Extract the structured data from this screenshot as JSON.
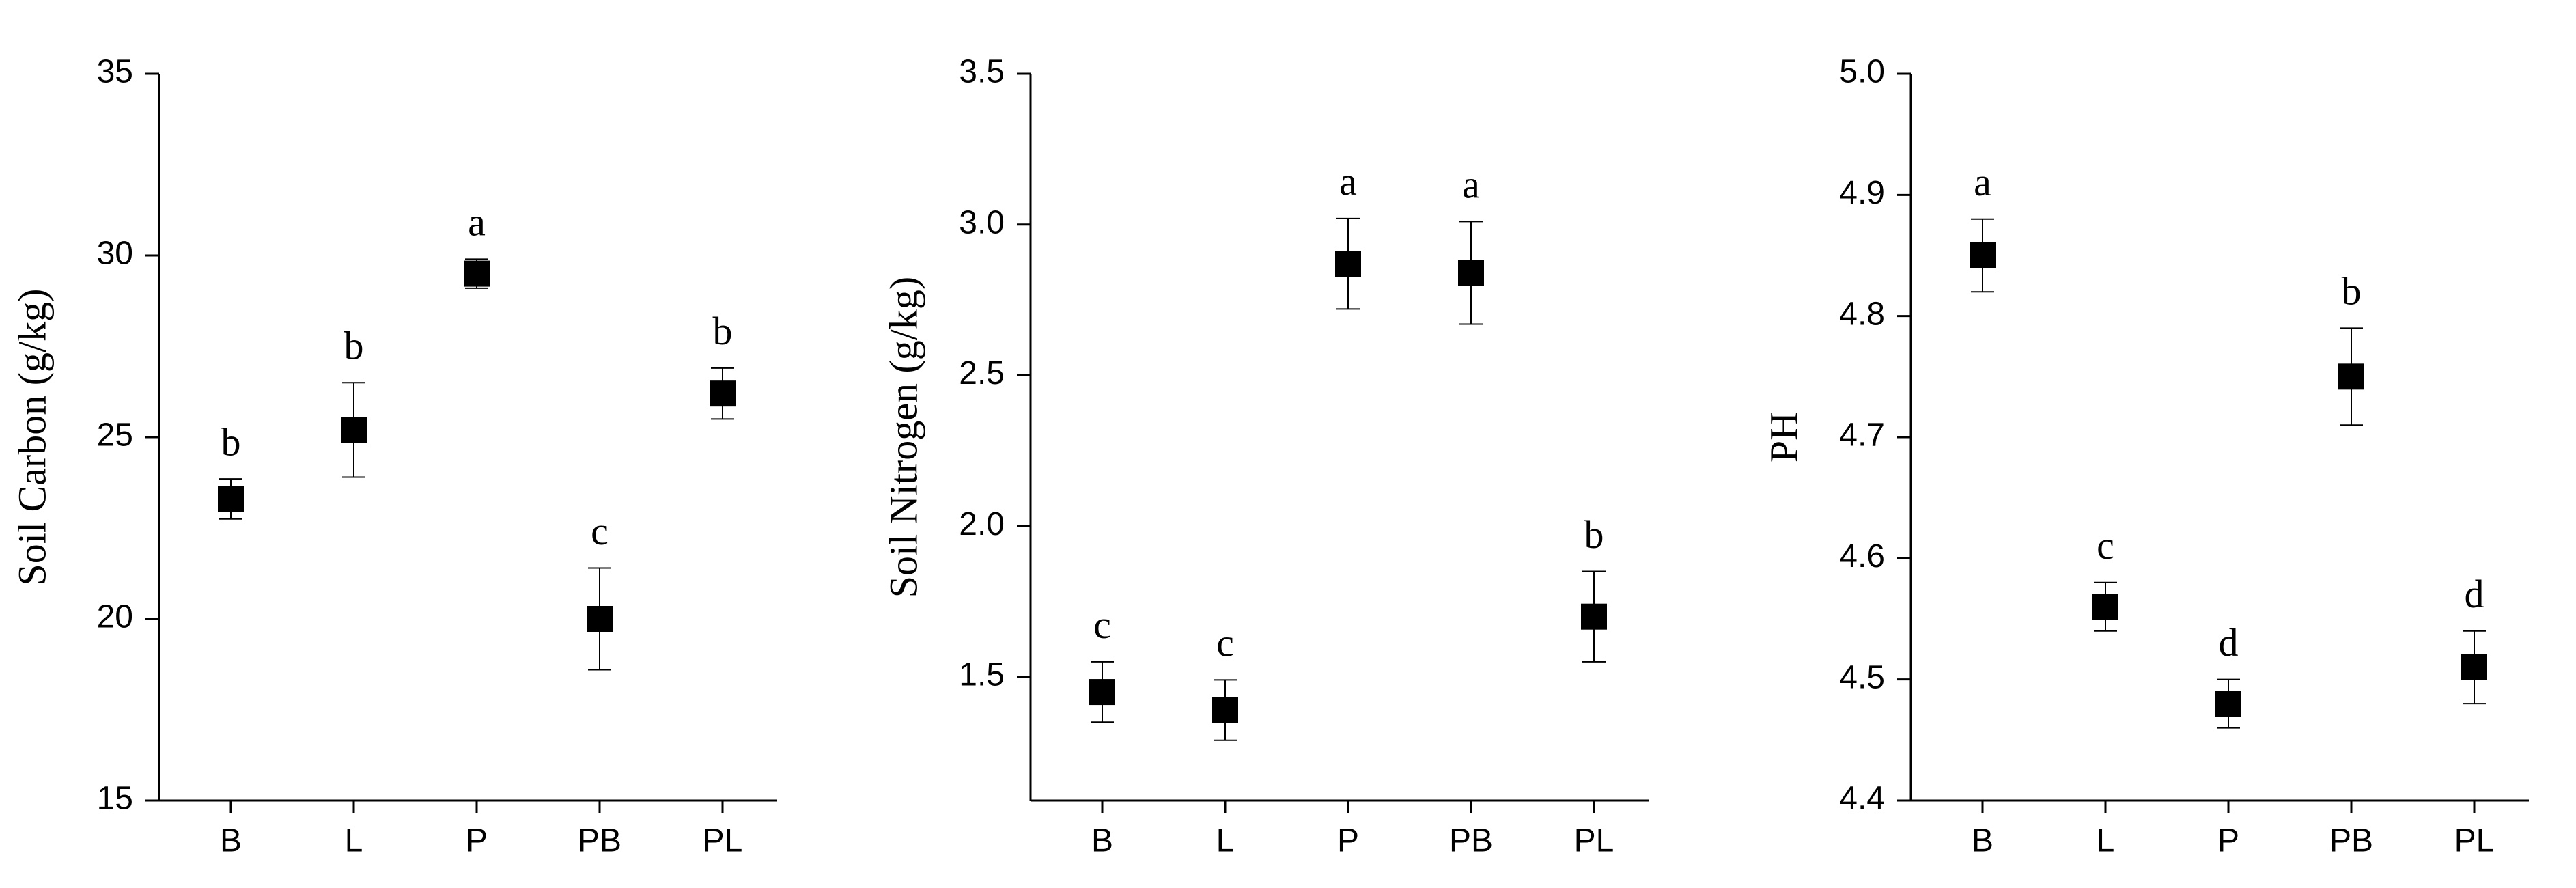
{
  "chart_data": [
    {
      "type": "scatter",
      "ylabel": "Soil Carbon (g/kg)",
      "color": "#000000",
      "categories": [
        "B",
        "L",
        "P",
        "PB",
        "PL"
      ],
      "values": [
        23.3,
        25.2,
        29.5,
        20.0,
        26.2
      ],
      "errors": [
        0.55,
        1.3,
        0.4,
        1.4,
        0.7
      ],
      "annotations": [
        "b",
        "b",
        "a",
        "c",
        "b"
      ],
      "ylim": [
        15,
        35
      ],
      "yticks": [
        15,
        20,
        25,
        30,
        35
      ]
    },
    {
      "type": "scatter",
      "ylabel": "Soil Nitrogen (g/kg)",
      "color": "#000000",
      "categories": [
        "B",
        "L",
        "P",
        "PB",
        "PL"
      ],
      "values": [
        1.45,
        1.39,
        2.87,
        2.84,
        1.7
      ],
      "errors": [
        0.1,
        0.1,
        0.15,
        0.17,
        0.15
      ],
      "annotations": [
        "c",
        "c",
        "a",
        "a",
        "b"
      ],
      "ylim": [
        1.09,
        3.5
      ],
      "yticks": [
        1.5,
        {
          "value": 2,
          "label": "2.0"
        },
        2.5,
        {
          "value": 3,
          "label": "3.0"
        },
        3.5
      ]
    },
    {
      "type": "scatter",
      "ylabel": "PH",
      "color": "#000000",
      "categories": [
        "B",
        "L",
        "P",
        "PB",
        "PL"
      ],
      "values": [
        4.85,
        4.56,
        4.48,
        4.75,
        4.51
      ],
      "errors": [
        0.03,
        0.02,
        0.02,
        0.04,
        0.03
      ],
      "annotations": [
        "a",
        "c",
        "d",
        "b",
        "d"
      ],
      "ylim": [
        4.4,
        5.0
      ],
      "yticks": [
        4.4,
        4.5,
        4.6,
        4.7,
        4.8,
        4.9,
        {
          "value": 5,
          "label": "5.0"
        }
      ]
    }
  ]
}
